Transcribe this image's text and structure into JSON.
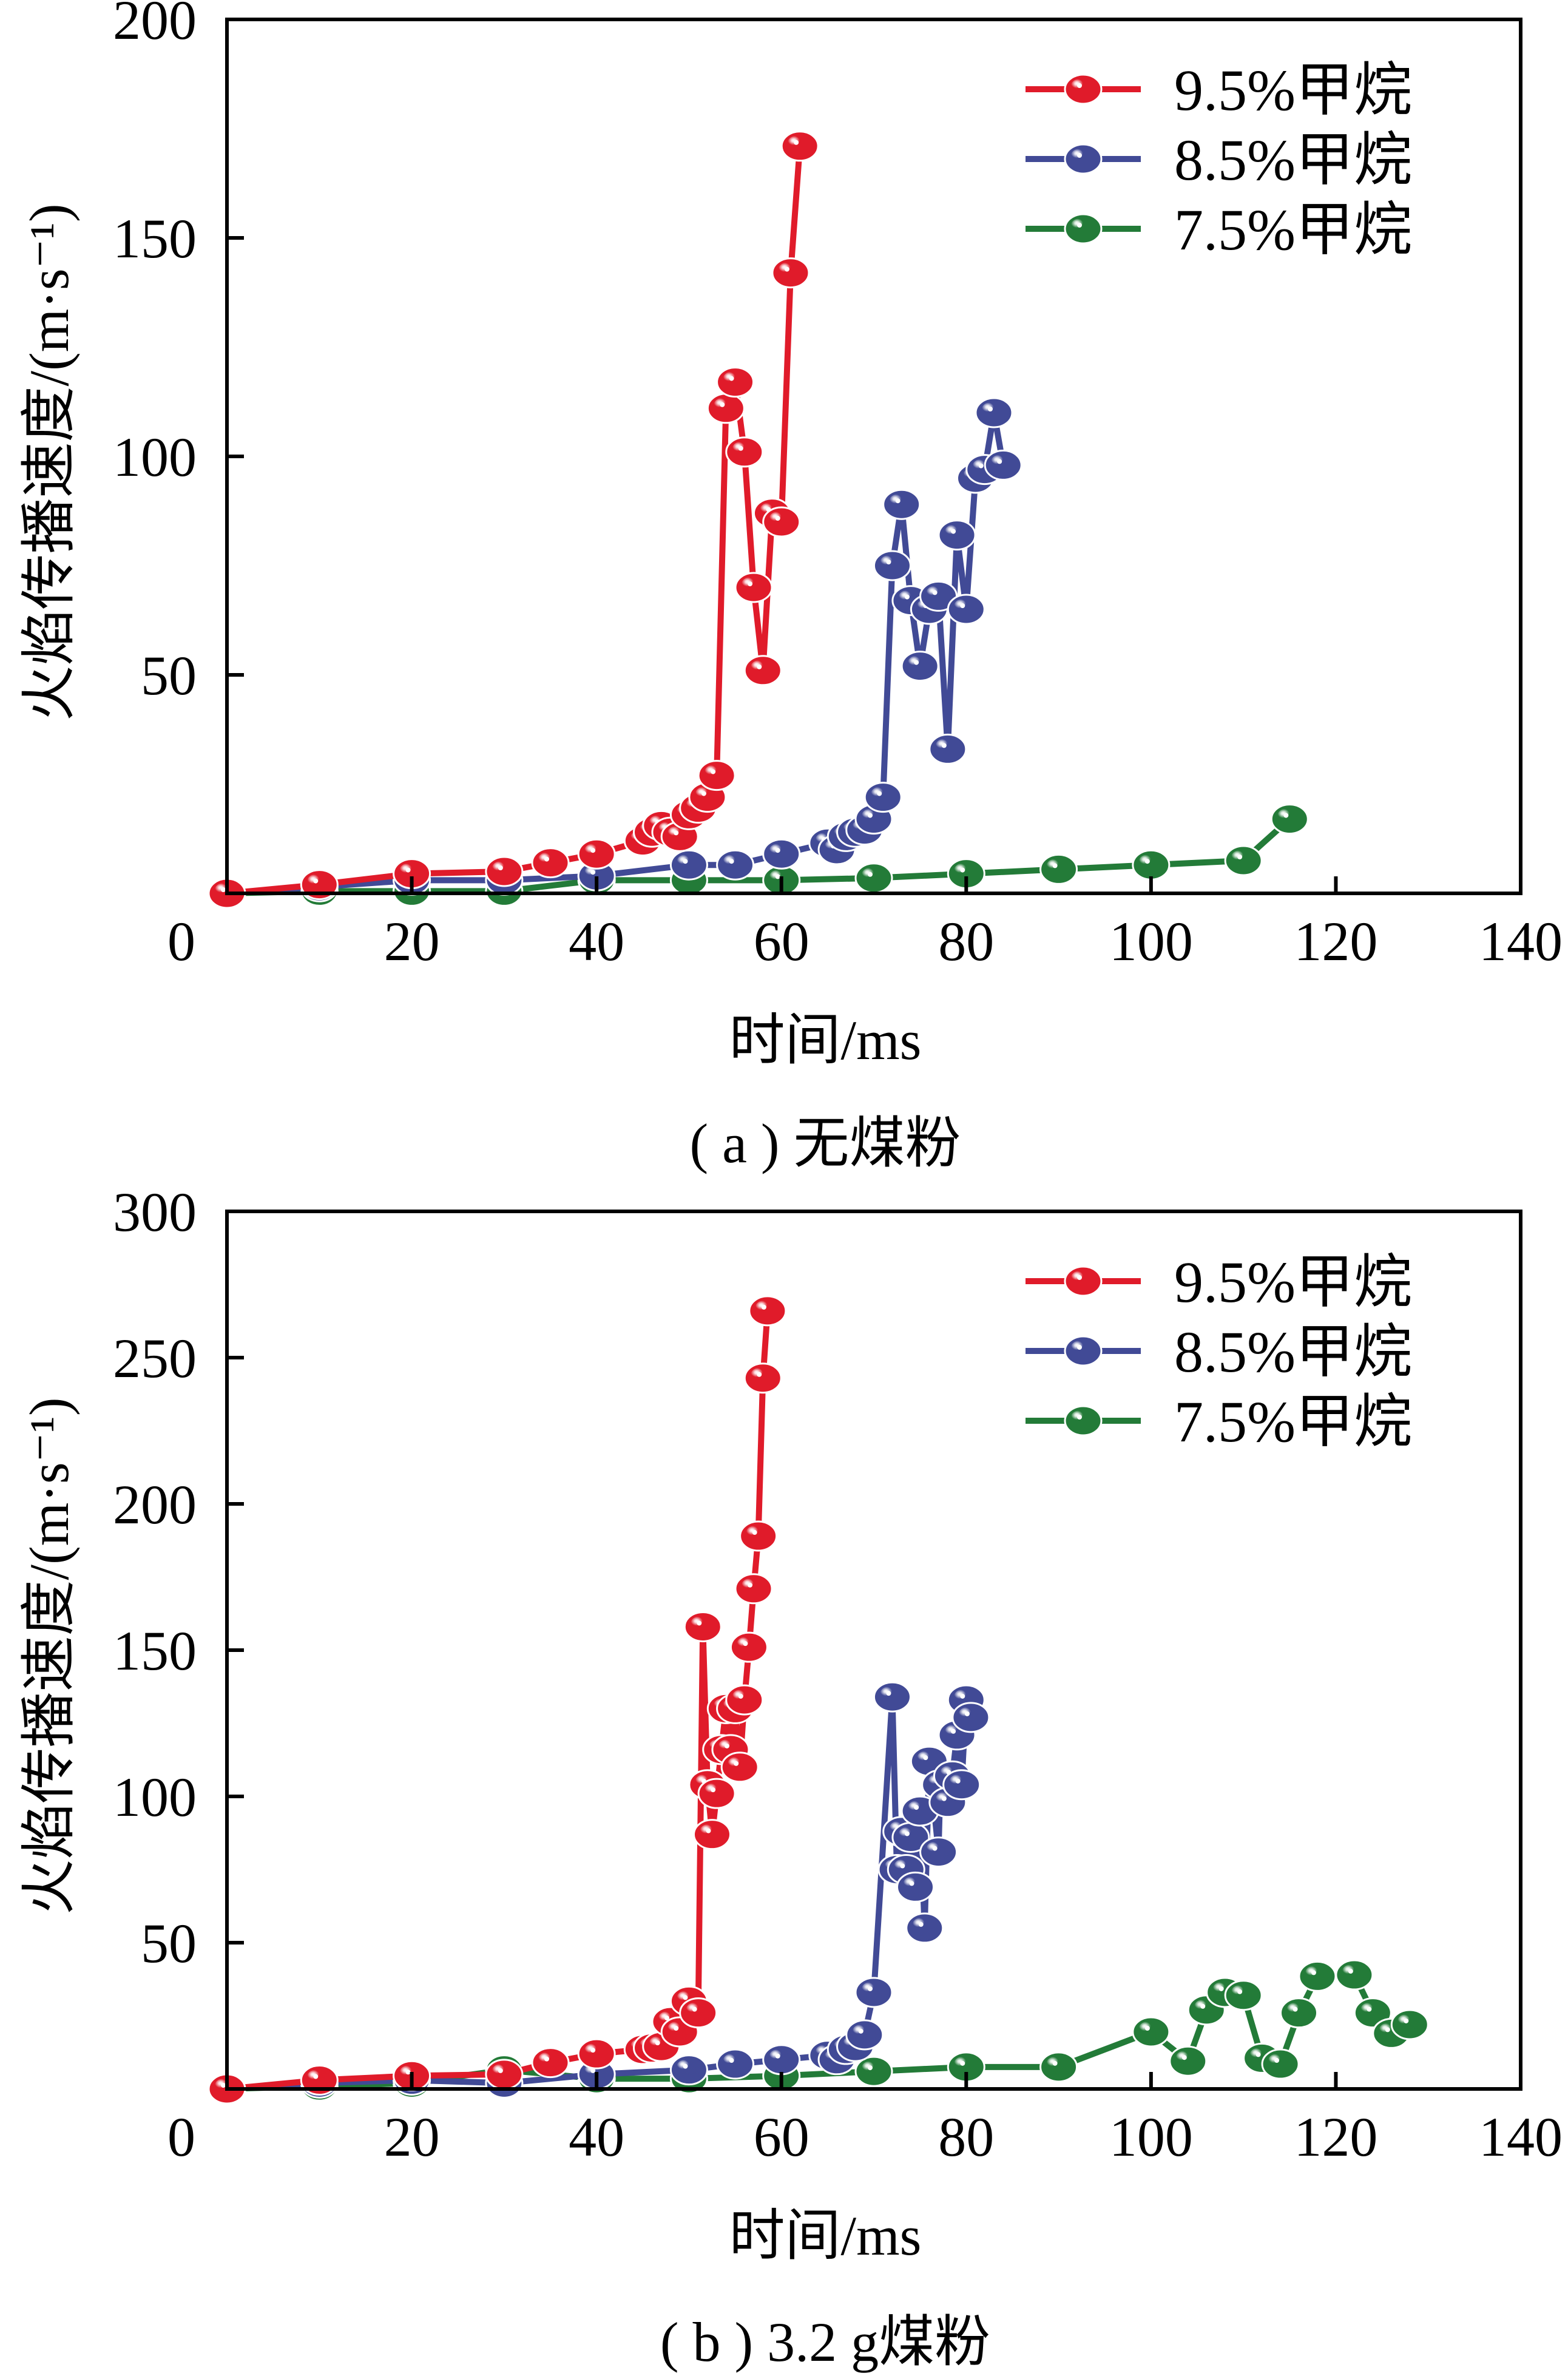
{
  "chart_data": [
    {
      "type": "line",
      "panel": "a",
      "caption": "( a ) 无煤粉",
      "title": "",
      "xlabel": "时间/ms",
      "ylabel": "火焰传播速度/(m·s⁻¹)",
      "xlim": [
        0,
        140
      ],
      "ylim": [
        0,
        200
      ],
      "xticks": [
        0,
        20,
        40,
        60,
        80,
        100,
        120,
        140
      ],
      "yticks": [
        50,
        100,
        150,
        200
      ],
      "ytick_labels": [
        "50",
        "100",
        "150",
        "200"
      ],
      "xtick_labels": [
        "0",
        "20",
        "40",
        "60",
        "80",
        "100",
        "120",
        "140"
      ],
      "grid": false,
      "legend_position": "top-right",
      "series": [
        {
          "name": "9.5%甲烷",
          "color": "#e01b2a",
          "x": [
            0,
            10,
            20,
            30,
            35,
            40,
            45,
            46,
            47,
            48,
            49,
            50,
            51,
            52,
            53,
            54,
            55,
            56,
            57,
            58,
            59,
            60,
            61,
            62
          ],
          "y": [
            0,
            2,
            4.5,
            5,
            7,
            9,
            12,
            14,
            15.5,
            14,
            13,
            18,
            19.5,
            22,
            27,
            111,
            117,
            101,
            70,
            51,
            87,
            85,
            142,
            171
          ]
        },
        {
          "name": "8.5%甲烷",
          "color": "#414a96",
          "x": [
            0,
            10,
            20,
            30,
            40,
            50,
            55,
            60,
            65,
            66,
            67,
            68,
            69,
            70,
            71,
            72,
            73,
            74,
            75,
            76,
            77,
            78,
            79,
            80,
            81,
            82,
            83,
            84
          ],
          "y": [
            0,
            1.5,
            3,
            3,
            4,
            6.5,
            6.5,
            9,
            11.5,
            10,
            13,
            14,
            14.5,
            17,
            22,
            75,
            89,
            67,
            52,
            65,
            68,
            33,
            82,
            65,
            95,
            97,
            110,
            98
          ]
        },
        {
          "name": "7.5%甲烷",
          "color": "#237b38",
          "x": [
            0,
            10,
            20,
            30,
            40,
            50,
            60,
            70,
            80,
            90,
            100,
            110,
            115
          ],
          "y": [
            0,
            0.5,
            0.5,
            0.5,
            3,
            3,
            3,
            3.5,
            4.5,
            5.5,
            6.5,
            7.5,
            17
          ]
        }
      ]
    },
    {
      "type": "line",
      "panel": "b",
      "caption": "( b ) 3.2 g煤粉",
      "title": "",
      "xlabel": "时间/ms",
      "ylabel": "火焰传播速度/(m·s⁻¹)",
      "xlim": [
        0,
        140
      ],
      "ylim": [
        0,
        300
      ],
      "xticks": [
        0,
        20,
        40,
        60,
        80,
        100,
        120,
        140
      ],
      "yticks": [
        50,
        100,
        150,
        200,
        250,
        300
      ],
      "ytick_labels": [
        "50",
        "100",
        "150",
        "200",
        "250",
        "300"
      ],
      "xtick_labels": [
        "0",
        "20",
        "40",
        "60",
        "80",
        "100",
        "120",
        "140"
      ],
      "grid": false,
      "legend_position": "top-right",
      "series": [
        {
          "name": "9.5%甲烷",
          "color": "#e01b2a",
          "x": [
            0,
            10,
            20,
            30,
            35,
            40,
            45,
            46,
            47,
            48,
            49,
            50,
            51,
            51.5,
            52,
            52.5,
            53,
            53.5,
            54,
            54.5,
            55,
            55.5,
            56,
            56.5,
            57,
            57.5,
            58,
            58.5
          ],
          "y": [
            0,
            3,
            4.5,
            5,
            9,
            12,
            13.5,
            14,
            14.5,
            23,
            19.5,
            30,
            26,
            158,
            104,
            87,
            101,
            116,
            130,
            116,
            130,
            110,
            133,
            151,
            171,
            189,
            243,
            266
          ]
        },
        {
          "name": "8.5%甲烷",
          "color": "#414a96",
          "x": [
            0,
            10,
            20,
            30,
            40,
            50,
            55,
            60,
            65,
            66,
            67,
            68,
            69,
            70,
            72,
            72.5,
            73,
            73.5,
            74,
            74.5,
            75,
            75.5,
            76,
            77,
            77.2,
            78,
            78.5,
            79,
            79.5,
            80,
            80.5
          ],
          "y": [
            0,
            2,
            3,
            2,
            5,
            6.5,
            8.5,
            10,
            11.5,
            10,
            13.5,
            14.5,
            18.5,
            33,
            134,
            75,
            88,
            75,
            86,
            69,
            95,
            55,
            112,
            81,
            104,
            98,
            107,
            121,
            104,
            133,
            127
          ]
        },
        {
          "name": "7.5%甲烷",
          "color": "#237b38",
          "x": [
            0,
            10,
            20,
            30,
            40,
            50,
            60,
            70,
            80,
            90,
            100,
            104,
            106,
            108,
            110,
            112,
            114,
            116,
            118,
            122,
            124,
            126,
            128
          ],
          "y": [
            0,
            1,
            2,
            6.5,
            3.5,
            3.5,
            4.5,
            6,
            7.5,
            7.5,
            19.5,
            9.5,
            27,
            33,
            32,
            10.5,
            8.5,
            26,
            38.5,
            39,
            26,
            19,
            22
          ]
        }
      ]
    }
  ]
}
